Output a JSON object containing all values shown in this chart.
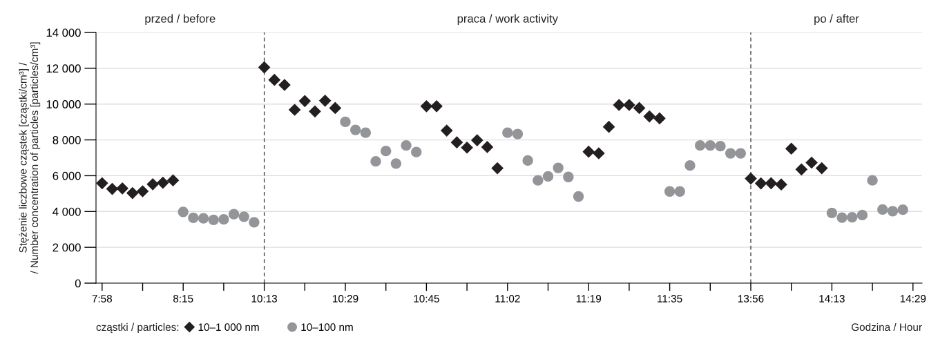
{
  "chart_data": {
    "type": "scatter",
    "ylabel": "Stężenie liczbowe cząstek [cząstki/cm³] /\n/ Number concentration of particles [particles/cm³]",
    "xlabel": "Godzina / Hour",
    "legend_title": "cząstki / particles:",
    "legend": "bottom left",
    "grid": "y",
    "categories": [
      "7:58",
      null,
      null,
      null,
      null,
      null,
      null,
      null,
      "8:15",
      null,
      null,
      null,
      null,
      null,
      null,
      null,
      "10:13",
      null,
      null,
      null,
      null,
      null,
      null,
      null,
      "10:29",
      null,
      null,
      null,
      null,
      null,
      null,
      null,
      "10:45",
      null,
      null,
      null,
      null,
      null,
      null,
      null,
      "11:02",
      null,
      null,
      null,
      null,
      null,
      null,
      null,
      "11:19",
      null,
      null,
      null,
      null,
      null,
      null,
      null,
      "11:35",
      null,
      null,
      null,
      null,
      null,
      null,
      null,
      "13:56",
      null,
      null,
      null,
      null,
      null,
      null,
      null,
      "14:13",
      null,
      null,
      null,
      null,
      null,
      null,
      null,
      "14:29"
    ],
    "ylim": [
      0,
      14000
    ],
    "yticks": [
      {
        "value": 0,
        "label": "0"
      },
      {
        "value": 2000,
        "label": "2 000"
      },
      {
        "value": 4000,
        "label": "4 000"
      },
      {
        "value": 6000,
        "label": "6 000"
      },
      {
        "value": 8000,
        "label": "8 000"
      },
      {
        "value": 10000,
        "label": "10 000"
      },
      {
        "value": 12000,
        "label": "12 000"
      },
      {
        "value": 14000,
        "label": "14 000"
      }
    ],
    "ref_lines": [
      {
        "axis": "x",
        "value": "10:13",
        "color": "#444444",
        "line_style": "dashed"
      },
      {
        "axis": "x",
        "value": "13:56",
        "color": "#444444",
        "line_style": "dashed"
      }
    ],
    "annotations": [
      "przed / before",
      "praca / work activity",
      "po / after"
    ],
    "series": [
      {
        "name": "10–1 000 nm",
        "color": "#231f20",
        "marker": "diamond",
        "values": [
          5580,
          5260,
          5290,
          5030,
          5130,
          5520,
          5610,
          5740,
          null,
          null,
          null,
          null,
          null,
          null,
          null,
          null,
          12050,
          11350,
          11070,
          9680,
          10170,
          9590,
          10190,
          9780,
          null,
          null,
          null,
          null,
          null,
          null,
          null,
          null,
          9880,
          9880,
          8520,
          7860,
          7570,
          7980,
          7600,
          6420,
          null,
          null,
          null,
          null,
          null,
          null,
          null,
          null,
          7340,
          7250,
          8730,
          9950,
          9950,
          9780,
          9310,
          9200,
          null,
          null,
          null,
          null,
          null,
          null,
          null,
          null,
          5840,
          5570,
          5580,
          5510,
          7510,
          6350,
          6730,
          6420,
          null,
          null,
          null,
          null,
          null,
          null,
          null,
          null,
          null
        ]
      },
      {
        "name": "10–100 nm",
        "color": "#939598",
        "marker": "circle",
        "values": [
          null,
          null,
          null,
          null,
          null,
          null,
          null,
          null,
          3980,
          3650,
          3620,
          3530,
          3560,
          3850,
          3710,
          3400,
          null,
          null,
          null,
          null,
          null,
          null,
          null,
          null,
          9010,
          8560,
          8400,
          6800,
          7380,
          6680,
          7690,
          7320,
          null,
          null,
          null,
          null,
          null,
          null,
          null,
          null,
          8400,
          8330,
          6850,
          5740,
          5960,
          6440,
          5930,
          4840,
          null,
          null,
          null,
          null,
          null,
          null,
          null,
          null,
          5120,
          5120,
          6570,
          7690,
          7690,
          7650,
          7250,
          7250,
          null,
          null,
          null,
          null,
          null,
          null,
          null,
          null,
          3920,
          3660,
          3680,
          3800,
          5740,
          4110,
          4020,
          4100,
          null
        ]
      }
    ]
  }
}
